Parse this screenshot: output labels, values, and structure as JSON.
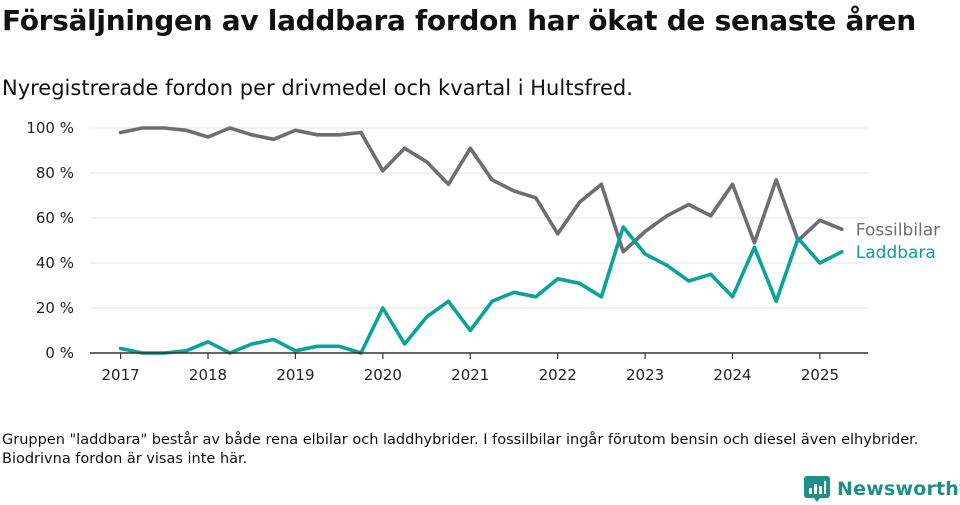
{
  "title": "Försäljningen av laddbara fordon har ökat de senaste åren",
  "subtitle": "Nyregistrerade fordon per drivmedel och kvartal i Hultsfred.",
  "footnote": "Gruppen \"laddbara\" består av både rena elbilar och laddhybrider. I fossilbilar ingår förutom bensin och diesel även elhybrider. Biodrivna fordon är visas inte här.",
  "brand": {
    "name": "Newsworthy",
    "icon": "newsworthy-logo-icon"
  },
  "colors": {
    "fossil": "#6e6d72",
    "laddbara": "#0aa39a",
    "grid": "#e3e3e3",
    "axis": "#333333",
    "brand": "#1f8f87"
  },
  "chart_data": {
    "type": "line",
    "title": "Försäljningen av laddbara fordon har ökat de senaste åren",
    "xlabel": "",
    "ylabel": "",
    "ylim": [
      0,
      100
    ],
    "yticks": [
      0,
      20,
      40,
      60,
      80,
      100
    ],
    "ytick_labels": [
      "0 %",
      "20 %",
      "40 %",
      "60 %",
      "80 %",
      "100 %"
    ],
    "xticks": [
      2017,
      2018,
      2019,
      2020,
      2021,
      2022,
      2023,
      2024,
      2025
    ],
    "xtick_labels": [
      "2017",
      "2018",
      "2019",
      "2020",
      "2021",
      "2022",
      "2023",
      "2024",
      "2025"
    ],
    "x": [
      2017.0,
      2017.25,
      2017.5,
      2017.75,
      2018.0,
      2018.25,
      2018.5,
      2018.75,
      2019.0,
      2019.25,
      2019.5,
      2019.75,
      2020.0,
      2020.25,
      2020.5,
      2020.75,
      2021.0,
      2021.25,
      2021.5,
      2021.75,
      2022.0,
      2022.25,
      2022.5,
      2022.75,
      2023.0,
      2023.25,
      2023.5,
      2023.75,
      2024.0,
      2024.25,
      2024.5,
      2024.75,
      2025.0,
      2025.25
    ],
    "series": [
      {
        "name": "Fossilbilar",
        "color": "#6e6d72",
        "values": [
          98,
          100,
          100,
          99,
          96,
          100,
          97,
          95,
          99,
          97,
          97,
          98,
          81,
          91,
          85,
          75,
          91,
          77,
          72,
          69,
          53,
          67,
          75,
          45,
          54,
          61,
          66,
          61,
          75,
          49,
          77,
          50,
          59,
          55
        ]
      },
      {
        "name": "Laddbara",
        "color": "#0aa39a",
        "values": [
          2,
          0,
          0,
          1,
          5,
          0,
          4,
          6,
          1,
          3,
          3,
          0,
          20,
          4,
          16,
          23,
          10,
          23,
          27,
          25,
          33,
          31,
          25,
          56,
          44,
          39,
          32,
          35,
          25,
          47,
          23,
          51,
          40,
          45
        ]
      }
    ],
    "legend": "right, at line ends"
  }
}
